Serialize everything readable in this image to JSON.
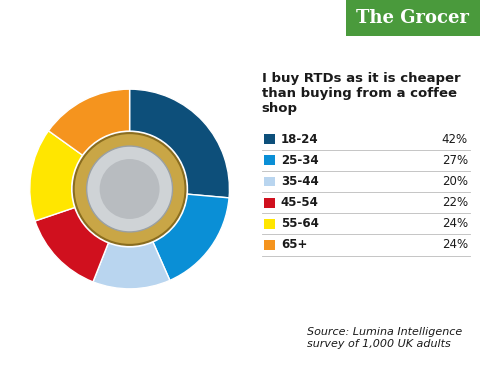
{
  "chart_data": {
    "type": "pie",
    "title": "I buy RTDs as it is cheaper than buying from a coffee shop",
    "logo": "The Grocer",
    "source": "Source: Lumina Intelligence survey of 1,000 UK adults",
    "categories": [
      "18-24",
      "25-34",
      "35-44",
      "45-54",
      "55-64",
      "65+"
    ],
    "values": [
      42,
      27,
      20,
      22,
      24,
      24
    ],
    "value_labels": [
      "42%",
      "27%",
      "20%",
      "22%",
      "24%",
      "24%"
    ],
    "colors": [
      "#0d4f7a",
      "#0a8fd6",
      "#b9d5ef",
      "#d0101e",
      "#ffe600",
      "#f5941e"
    ],
    "legend": "right"
  }
}
